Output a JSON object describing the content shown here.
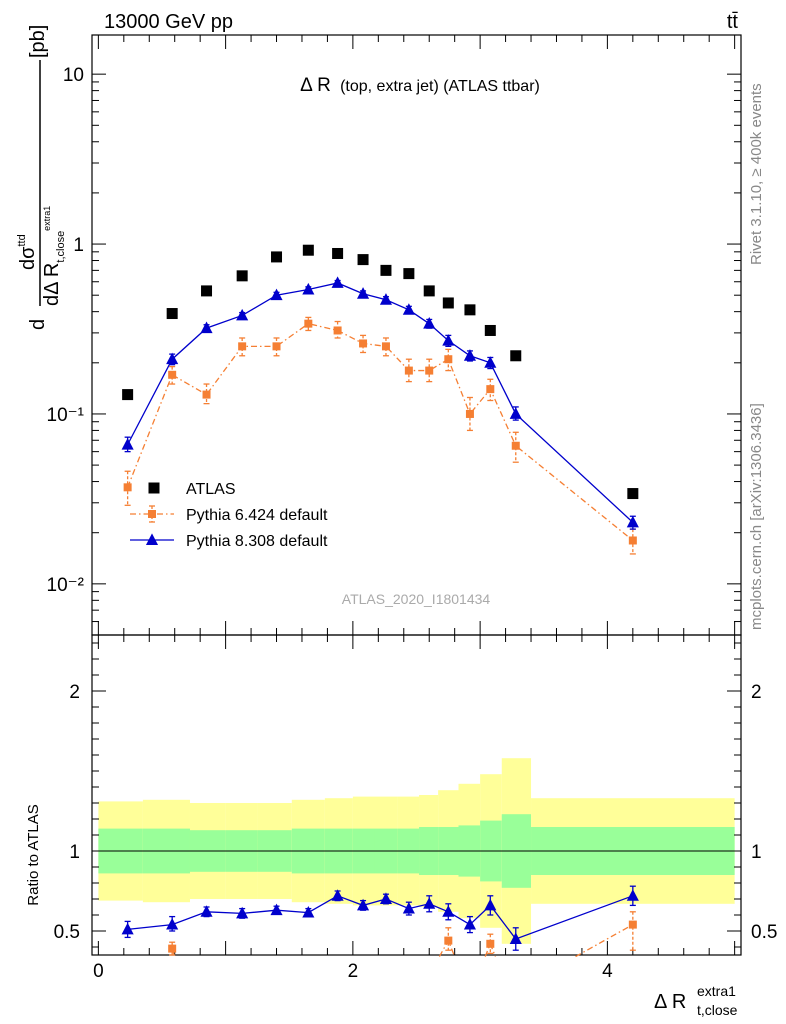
{
  "header": {
    "left": "13000 GeV pp",
    "right": "tt̄"
  },
  "side_text": {
    "rivet": "Rivet 3.1.10, ≥ 400k events",
    "mcplots": "mcplots.cern.ch [arXiv:1306.3436]"
  },
  "chart_data": [
    {
      "type": "scatter",
      "title": "Δ R (top, extra jet) (ATLAS ttbar)",
      "title_main": "Δ R",
      "title_sub": "(top, extra jet) (ATLAS ttbar)",
      "watermark": "ATLAS_2020_I1801434",
      "ylabel": "dσ^ttd / dΔ R_t,close^extra1 [pb]",
      "y_scale": "log",
      "ylim": [
        0.005,
        17
      ],
      "xlim": [
        -0.05,
        5.05
      ],
      "y_tick_labels": [
        "10⁻²",
        "10⁻¹",
        "1",
        "10"
      ],
      "legend_position": "bottom-left",
      "series": [
        {
          "name": "ATLAS",
          "color": "#000000",
          "marker": "square",
          "x": [
            0.23,
            0.58,
            0.85,
            1.13,
            1.4,
            1.65,
            1.88,
            2.08,
            2.26,
            2.44,
            2.6,
            2.75,
            2.92,
            3.08,
            3.28,
            4.2
          ],
          "y": [
            0.13,
            0.39,
            0.53,
            0.65,
            0.84,
            0.92,
            0.88,
            0.81,
            0.7,
            0.67,
            0.53,
            0.45,
            0.41,
            0.31,
            0.22,
            0.034
          ]
        },
        {
          "name": "Pythia 6.424 default",
          "color": "#f57f33",
          "marker": "square",
          "line": "dashdot",
          "x": [
            0.23,
            0.58,
            0.85,
            1.13,
            1.4,
            1.65,
            1.88,
            2.08,
            2.26,
            2.44,
            2.6,
            2.75,
            2.92,
            3.08,
            3.28,
            4.2
          ],
          "y": [
            0.037,
            0.17,
            0.13,
            0.25,
            0.25,
            0.34,
            0.31,
            0.26,
            0.25,
            0.18,
            0.18,
            0.21,
            0.1,
            0.14,
            0.065,
            0.018
          ],
          "err_lo": [
            0.029,
            0.15,
            0.115,
            0.22,
            0.22,
            0.31,
            0.28,
            0.23,
            0.22,
            0.155,
            0.155,
            0.18,
            0.08,
            0.12,
            0.052,
            0.015
          ],
          "err_hi": [
            0.046,
            0.19,
            0.15,
            0.28,
            0.28,
            0.37,
            0.35,
            0.29,
            0.28,
            0.21,
            0.21,
            0.24,
            0.125,
            0.16,
            0.078,
            0.021
          ]
        },
        {
          "name": "Pythia 8.308 default",
          "color": "#0000cc",
          "marker": "triangle",
          "line": "solid",
          "x": [
            0.23,
            0.58,
            0.85,
            1.13,
            1.4,
            1.65,
            1.88,
            2.08,
            2.26,
            2.44,
            2.6,
            2.75,
            2.92,
            3.08,
            3.28,
            4.2
          ],
          "y": [
            0.066,
            0.21,
            0.32,
            0.38,
            0.5,
            0.54,
            0.59,
            0.51,
            0.47,
            0.41,
            0.34,
            0.27,
            0.22,
            0.2,
            0.1,
            0.023
          ],
          "err_lo": [
            0.06,
            0.195,
            0.305,
            0.365,
            0.48,
            0.52,
            0.57,
            0.49,
            0.45,
            0.39,
            0.32,
            0.25,
            0.205,
            0.185,
            0.092,
            0.021
          ],
          "err_hi": [
            0.073,
            0.225,
            0.335,
            0.395,
            0.52,
            0.56,
            0.61,
            0.53,
            0.49,
            0.43,
            0.36,
            0.29,
            0.235,
            0.215,
            0.11,
            0.025
          ]
        }
      ]
    },
    {
      "type": "scatter",
      "ylabel": "Ratio to ATLAS",
      "xlabel": "Δ R_t,close^extra1",
      "ylim": [
        0.35,
        2.35
      ],
      "xlim": [
        -0.05,
        5.05
      ],
      "x_tick_labels": [
        "0",
        "2",
        "4"
      ],
      "x_ticks": [
        0,
        2,
        4
      ],
      "y_tick_labels": [
        "0.5",
        "1",
        "2"
      ],
      "y_ticks": [
        0.5,
        1,
        2
      ],
      "reference": 1,
      "bands": {
        "edges": [
          0,
          0.35,
          0.72,
          1.0,
          1.25,
          1.52,
          1.78,
          2.0,
          2.17,
          2.35,
          2.52,
          2.67,
          2.83,
          3.0,
          3.17,
          3.4,
          5.0
        ],
        "inner_lo": [
          0.86,
          0.86,
          0.87,
          0.87,
          0.87,
          0.86,
          0.86,
          0.86,
          0.86,
          0.86,
          0.85,
          0.85,
          0.84,
          0.81,
          0.77,
          0.85
        ],
        "inner_hi": [
          1.14,
          1.14,
          1.13,
          1.13,
          1.13,
          1.14,
          1.14,
          1.14,
          1.14,
          1.14,
          1.15,
          1.15,
          1.16,
          1.19,
          1.23,
          1.15
        ],
        "outer_lo": [
          0.69,
          0.68,
          0.7,
          0.7,
          0.7,
          0.68,
          0.67,
          0.66,
          0.66,
          0.66,
          0.65,
          0.62,
          0.58,
          0.52,
          0.42,
          0.67
        ],
        "outer_hi": [
          1.31,
          1.32,
          1.3,
          1.3,
          1.3,
          1.32,
          1.33,
          1.34,
          1.34,
          1.34,
          1.35,
          1.38,
          1.42,
          1.48,
          1.58,
          1.33
        ],
        "inner_color": "#99ff99",
        "outer_color": "#ffff99"
      },
      "series": [
        {
          "name": "Pythia 6.424 default",
          "color": "#f57f33",
          "x": [
            0.58,
            2.75,
            3.08,
            4.2
          ],
          "y": [
            0.39,
            0.44,
            0.42,
            0.54
          ],
          "err_lo": [
            0.35,
            0.38,
            0.36,
            0.38
          ],
          "err_hi": [
            0.43,
            0.52,
            0.48,
            0.62
          ],
          "lines": [
            [
              [
                0.58,
                0.39
              ],
              [
                0.6,
                0.34
              ]
            ],
            [
              [
                2.68,
                0.34
              ],
              [
                2.75,
                0.44
              ],
              [
                2.8,
                0.34
              ]
            ],
            [
              [
                3.04,
                0.34
              ],
              [
                3.08,
                0.42
              ],
              [
                3.12,
                0.34
              ]
            ],
            [
              [
                3.75,
                0.34
              ],
              [
                4.2,
                0.54
              ]
            ]
          ]
        },
        {
          "name": "Pythia 8.308 default",
          "color": "#0000cc",
          "x": [
            0.23,
            0.58,
            0.85,
            1.13,
            1.4,
            1.65,
            1.88,
            2.08,
            2.26,
            2.44,
            2.6,
            2.75,
            2.92,
            3.08,
            3.28,
            4.2
          ],
          "y": [
            0.51,
            0.54,
            0.62,
            0.61,
            0.63,
            0.615,
            0.72,
            0.66,
            0.7,
            0.64,
            0.67,
            0.62,
            0.54,
            0.66,
            0.45,
            0.72
          ],
          "err_lo": [
            0.46,
            0.5,
            0.59,
            0.58,
            0.605,
            0.59,
            0.69,
            0.63,
            0.67,
            0.6,
            0.62,
            0.57,
            0.49,
            0.6,
            0.38,
            0.66
          ],
          "err_hi": [
            0.56,
            0.59,
            0.65,
            0.64,
            0.655,
            0.64,
            0.75,
            0.69,
            0.73,
            0.68,
            0.72,
            0.67,
            0.59,
            0.72,
            0.52,
            0.78
          ]
        }
      ]
    }
  ]
}
